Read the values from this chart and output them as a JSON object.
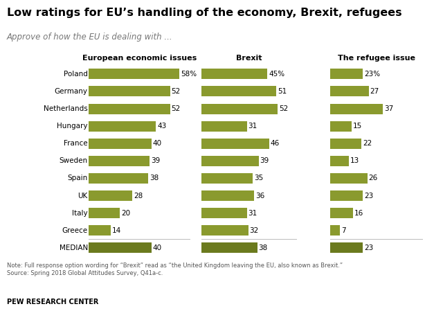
{
  "title": "Low ratings for EU’s handling of the economy, Brexit, refugees",
  "subtitle": "Approve of how the EU is dealing with ...",
  "note": "Note: Full response option wording for “Brexit” read as “the United Kingdom leaving the EU, also known as Brexit.”\nSource: Spring 2018 Global Attitudes Survey, Q41a-c.",
  "source": "PEW RESEARCH CENTER",
  "countries": [
    "Poland",
    "Germany",
    "Netherlands",
    "Hungary",
    "France",
    "Sweden",
    "Spain",
    "UK",
    "Italy",
    "Greece",
    "MEDIAN"
  ],
  "col_titles": [
    "European economic issues",
    "Brexit",
    "The refugee issue"
  ],
  "economy": [
    58,
    52,
    52,
    43,
    40,
    39,
    38,
    28,
    20,
    14,
    40
  ],
  "brexit": [
    45,
    51,
    52,
    31,
    46,
    39,
    35,
    36,
    31,
    32,
    38
  ],
  "refugees": [
    23,
    27,
    37,
    15,
    22,
    13,
    26,
    23,
    16,
    7,
    23
  ],
  "bar_color_regular": "#8A9A2E",
  "bar_color_median": "#6B7A1E",
  "bar_max": 65,
  "background_color": "#ffffff",
  "title_fontsize": 11.5,
  "subtitle_fontsize": 8.5,
  "col_title_fontsize": 8.0,
  "label_fontsize": 7.5,
  "country_fontsize": 7.5,
  "note_fontsize": 6.0,
  "source_fontsize": 7.0
}
